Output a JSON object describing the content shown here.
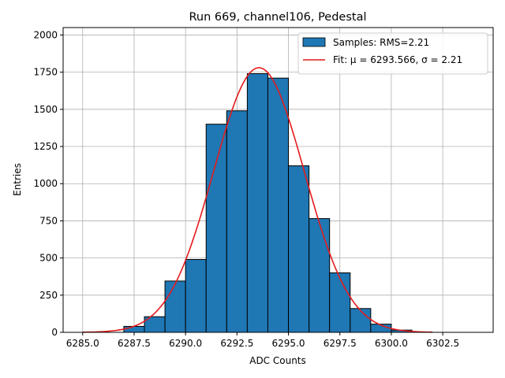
{
  "chart_data": {
    "type": "bar",
    "title": "Run 669, channel106, Pedestal",
    "xlabel": "ADC Counts",
    "ylabel": "Entries",
    "xlim": [
      6284.05,
      6304.95
    ],
    "ylim": [
      0,
      2050
    ],
    "xticks": [
      6285.0,
      6287.5,
      6290.0,
      6292.5,
      6295.0,
      6297.5,
      6300.0,
      6302.5
    ],
    "xtick_labels": [
      "6285.0",
      "6287.5",
      "6290.0",
      "6292.5",
      "6295.0",
      "6297.5",
      "6300.0",
      "6302.5"
    ],
    "yticks": [
      0,
      250,
      500,
      750,
      1000,
      1250,
      1500,
      1750,
      2000
    ],
    "ytick_labels": [
      "0",
      "250",
      "500",
      "750",
      "1000",
      "1250",
      "1500",
      "1750",
      "2000"
    ],
    "grid": true,
    "legend_position": "top-right",
    "bin_width": 1,
    "bins": [
      {
        "left": 6287,
        "count": 40
      },
      {
        "left": 6288,
        "count": 105
      },
      {
        "left": 6289,
        "count": 345
      },
      {
        "left": 6290,
        "count": 490
      },
      {
        "left": 6291,
        "count": 1400
      },
      {
        "left": 6292,
        "count": 1490
      },
      {
        "left": 6293,
        "count": 1740
      },
      {
        "left": 6294,
        "count": 1710
      },
      {
        "left": 6295,
        "count": 1120
      },
      {
        "left": 6296,
        "count": 765
      },
      {
        "left": 6297,
        "count": 400
      },
      {
        "left": 6298,
        "count": 160
      },
      {
        "left": 6299,
        "count": 55
      },
      {
        "left": 6300,
        "count": 15
      }
    ],
    "series": [
      {
        "name": "Samples: RMS=2.21",
        "kind": "histogram",
        "color": "#1f77b4"
      },
      {
        "name": "Fit: μ = 6293.566, σ = 2.21",
        "kind": "gaussian-fit",
        "color": "#e41a1c",
        "mu": 6293.566,
        "sigma": 2.21,
        "amplitude": 1780,
        "x_range": [
          6285,
          6302
        ]
      }
    ]
  }
}
